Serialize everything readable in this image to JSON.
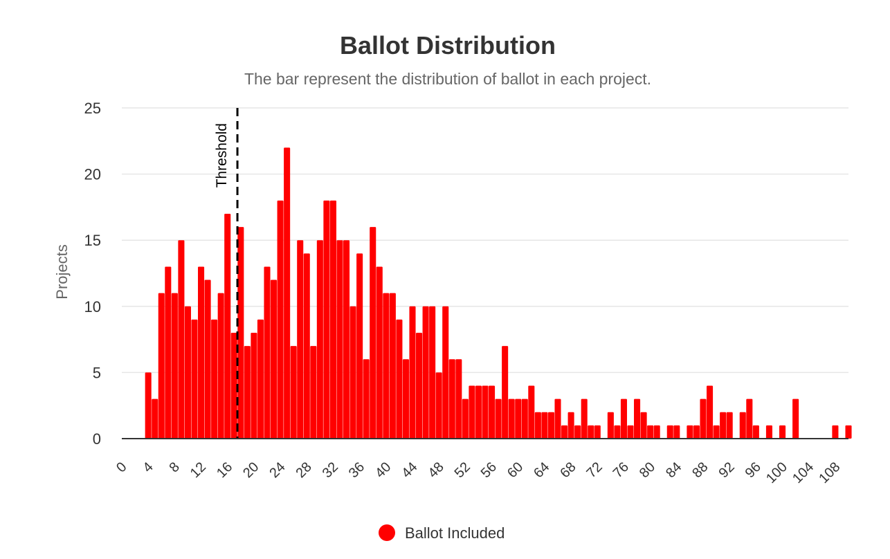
{
  "chart_data": {
    "type": "bar",
    "title": "Ballot Distribution",
    "subtitle": "The bar represent the distribution of ballot in each project.",
    "xlabel": "",
    "ylabel": "Projects",
    "xlim": [
      0,
      110
    ],
    "ylim": [
      0,
      25
    ],
    "y_ticks": [
      0,
      5,
      10,
      15,
      20,
      25
    ],
    "x_ticks": [
      0,
      4,
      8,
      12,
      16,
      20,
      24,
      28,
      32,
      36,
      40,
      44,
      48,
      52,
      56,
      60,
      64,
      68,
      72,
      76,
      80,
      84,
      88,
      92,
      96,
      100,
      104,
      108
    ],
    "grid": true,
    "legend_position": "bottom",
    "series": [
      {
        "name": "Ballot Included",
        "color": "#ff0000",
        "x": [
          4,
          5,
          6,
          7,
          8,
          9,
          10,
          11,
          12,
          13,
          14,
          15,
          16,
          17,
          18,
          19,
          20,
          21,
          22,
          23,
          24,
          25,
          26,
          27,
          28,
          29,
          30,
          31,
          32,
          33,
          34,
          35,
          36,
          37,
          38,
          39,
          40,
          41,
          42,
          43,
          44,
          45,
          46,
          47,
          48,
          49,
          50,
          51,
          52,
          53,
          54,
          55,
          56,
          57,
          58,
          59,
          60,
          61,
          62,
          63,
          64,
          65,
          66,
          67,
          68,
          69,
          70,
          71,
          72,
          73,
          74,
          75,
          76,
          77,
          78,
          79,
          80,
          81,
          82,
          83,
          84,
          85,
          86,
          87,
          88,
          89,
          90,
          91,
          92,
          93,
          94,
          95,
          96,
          97,
          98,
          99,
          100,
          101,
          102,
          103,
          104,
          105,
          106,
          107,
          108,
          109,
          110
        ],
        "values": [
          5,
          3,
          11,
          13,
          11,
          15,
          10,
          9,
          13,
          12,
          9,
          11,
          17,
          8,
          16,
          7,
          8,
          9,
          13,
          12,
          18,
          22,
          7,
          15,
          14,
          7,
          15,
          18,
          18,
          15,
          15,
          10,
          14,
          6,
          16,
          13,
          11,
          11,
          9,
          6,
          10,
          8,
          10,
          10,
          5,
          10,
          6,
          6,
          3,
          4,
          4,
          4,
          4,
          3,
          7,
          3,
          3,
          3,
          4,
          2,
          2,
          2,
          3,
          1,
          2,
          1,
          3,
          1,
          1,
          0,
          2,
          1,
          3,
          1,
          3,
          2,
          1,
          1,
          0,
          1,
          1,
          0,
          1,
          1,
          3,
          4,
          1,
          2,
          2,
          0,
          2,
          3,
          1,
          0,
          1,
          0,
          1,
          0,
          3,
          0,
          0,
          0,
          0,
          0,
          1,
          0,
          1
        ]
      }
    ],
    "annotations": [
      {
        "type": "vertical-line",
        "x": 17.5,
        "label": "Threshold",
        "style": "dashed",
        "color": "#000000"
      }
    ]
  }
}
